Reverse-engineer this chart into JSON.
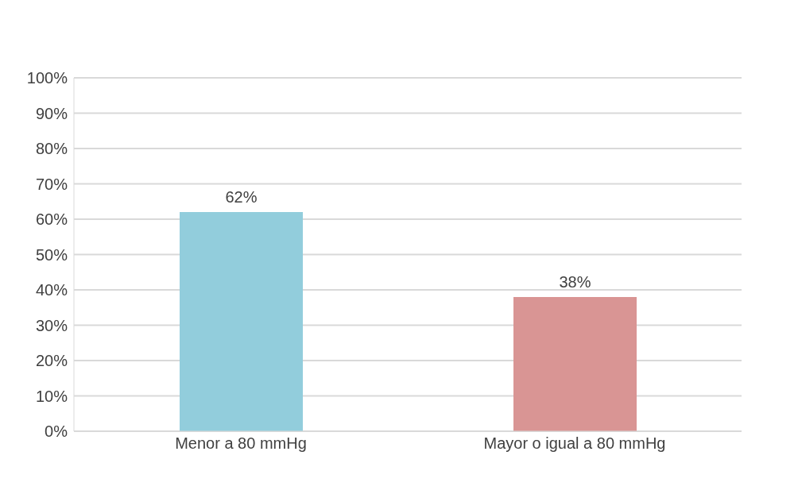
{
  "chart_data": {
    "type": "bar",
    "categories": [
      "Menor a 80 mmHg",
      "Mayor o igual a 80 mmHg"
    ],
    "values": [
      62,
      38
    ],
    "colors": [
      "#92cddc",
      "#d99594"
    ],
    "value_labels": [
      "62%",
      "38%"
    ],
    "ylim": [
      0,
      100
    ],
    "yticks": [
      {
        "value": 0,
        "label": "0%"
      },
      {
        "value": 10,
        "label": "10%"
      },
      {
        "value": 20,
        "label": "20%"
      },
      {
        "value": 30,
        "label": "30%"
      },
      {
        "value": 40,
        "label": "40%"
      },
      {
        "value": 50,
        "label": "50%"
      },
      {
        "value": 60,
        "label": "60%"
      },
      {
        "value": 70,
        "label": "70%"
      },
      {
        "value": 80,
        "label": "80%"
      },
      {
        "value": 90,
        "label": "90%"
      },
      {
        "value": 100,
        "label": "100%"
      }
    ],
    "grid": "y",
    "legend": false
  }
}
